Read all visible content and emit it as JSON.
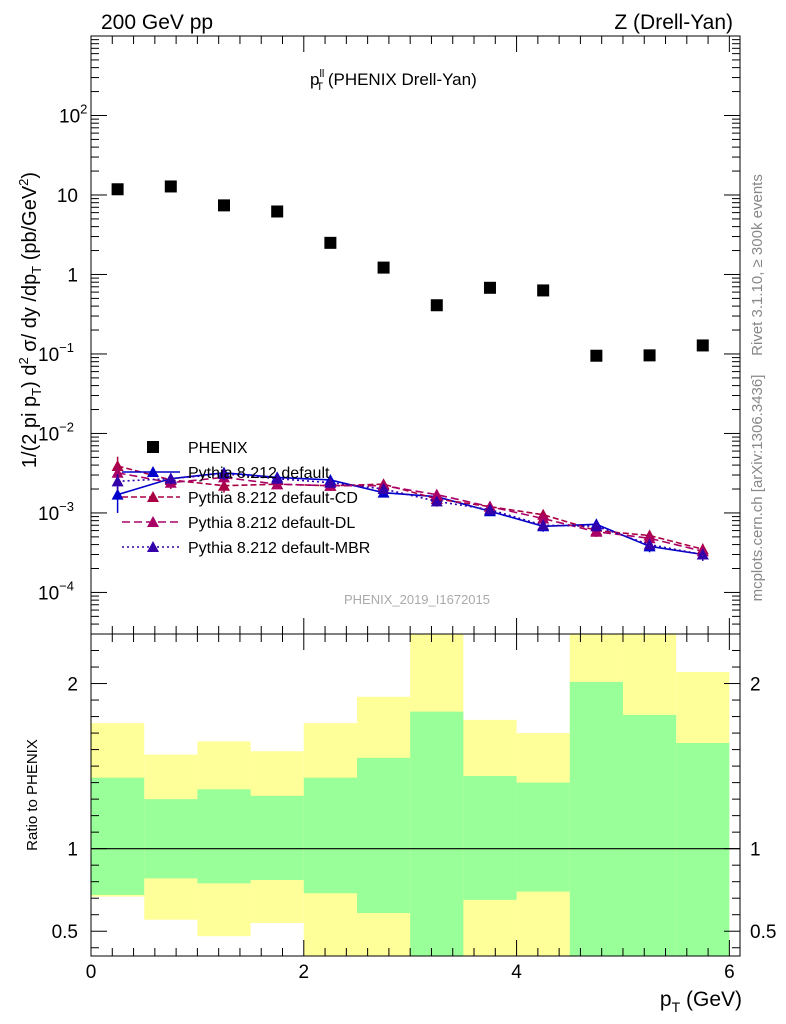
{
  "header": {
    "left": "200 GeV pp",
    "right": "Z (Drell-Yan)"
  },
  "side_labels": {
    "rivet": "Rivet 3.1.10, ≥ 300k events",
    "mcplots": "mcplots.cern.ch [arXiv:1306.3436]"
  },
  "colors": {
    "data": "#000000",
    "default": "#0000cc",
    "cd": "#aa0044",
    "dl": "#aa0066",
    "mbr": "#3300aa",
    "band_outer": "#ffff99",
    "band_inner": "#99ff99"
  },
  "chart_data": [
    {
      "type": "scatter",
      "title_main": "p",
      "title_sup": "ll",
      "title_sub": "T",
      "title_rest": " (PHENIX Drell-Yan)",
      "ylabel": "1/(2 pi p_T) d^2 σ/ dy /dp_T (pb/GeV^2)",
      "ylabel_parts": {
        "a": "1/(2 pi p",
        "a_sub": "T",
        "b": ") d",
        "b_sup": "2",
        "c": " σ/ dy /dp",
        "c_sub": "T",
        "d": " (pb/GeV",
        "d_sup": "2",
        "e": ")"
      },
      "yscale": "log",
      "ylim": [
        3e-05,
        1000
      ],
      "xlim": [
        0,
        6.1
      ],
      "y_ticks": [
        {
          "v": 0.0001,
          "base": "10",
          "exp": "−4"
        },
        {
          "v": 0.001,
          "base": "10",
          "exp": "−3"
        },
        {
          "v": 0.01,
          "base": "10",
          "exp": "−2"
        },
        {
          "v": 0.1,
          "base": "10",
          "exp": "−1"
        },
        {
          "v": 1,
          "base": "1",
          "exp": ""
        },
        {
          "v": 10,
          "base": "10",
          "exp": ""
        },
        {
          "v": 100,
          "base": "10",
          "exp": "2"
        }
      ],
      "watermark": "PHENIX_2019_I1672015",
      "x": [
        0.25,
        0.75,
        1.25,
        1.75,
        2.25,
        2.75,
        3.25,
        3.75,
        4.25,
        4.75,
        5.25,
        5.75
      ],
      "x_edges": [
        0,
        0.5,
        1.0,
        1.5,
        2.0,
        2.5,
        3.0,
        3.5,
        4.0,
        4.5,
        5.0,
        5.5,
        6.0
      ],
      "series": [
        {
          "name": "PHENIX",
          "style": "data",
          "values": [
            11.8,
            12.8,
            7.4,
            6.2,
            2.5,
            1.22,
            0.41,
            0.68,
            0.63,
            0.095,
            0.096,
            0.128
          ]
        },
        {
          "name": "Pythia 8.212 default",
          "style": "default",
          "values": [
            0.0017,
            0.0027,
            0.0032,
            0.0028,
            0.0026,
            0.0018,
            0.0016,
            0.00105,
            0.00068,
            0.00072,
            0.00038,
            0.0003
          ],
          "err": [
            0.0007,
            0.0004,
            0.0005,
            0.0004,
            0.0003,
            0.0002,
            0.0002,
            0.00012,
            0.0001,
            0.0001,
            6e-05,
            5e-05
          ]
        },
        {
          "name": "Pythia 8.212 default-CD",
          "style": "cd",
          "values": [
            0.0039,
            0.0026,
            0.0022,
            0.0023,
            0.0022,
            0.0023,
            0.0015,
            0.0012,
            0.00095,
            0.0006,
            0.00052,
            0.00035
          ],
          "err": [
            0.0012,
            0.0005,
            0.0004,
            0.0003,
            0.0003,
            0.0003,
            0.0002,
            0.00015,
            0.00012,
            8e-05,
            8e-05,
            6e-05
          ]
        },
        {
          "name": "Pythia 8.212 default-DL",
          "style": "dl",
          "values": [
            0.0032,
            0.0024,
            0.0028,
            0.0023,
            0.0022,
            0.0022,
            0.0017,
            0.0012,
            0.00085,
            0.00058,
            0.00048,
            0.00033
          ],
          "err": [
            0.0009,
            0.0004,
            0.0005,
            0.0003,
            0.0003,
            0.0003,
            0.0002,
            0.00015,
            0.00011,
            8e-05,
            7e-05,
            5e-05
          ]
        },
        {
          "name": "Pythia 8.212 default-MBR",
          "style": "mbr",
          "values": [
            0.0025,
            0.0027,
            0.0031,
            0.0027,
            0.0024,
            0.002,
            0.0014,
            0.0011,
            0.0007,
            0.00068,
            0.0004,
            0.0003
          ],
          "err": [
            0.0006,
            0.0004,
            0.0005,
            0.0004,
            0.0003,
            0.0002,
            0.0002,
            0.00012,
            0.0001,
            0.0001,
            6e-05,
            5e-05
          ]
        }
      ]
    },
    {
      "type": "area",
      "ylabel": "Ratio to PHENIX",
      "xlabel_main": "p",
      "xlabel_sub": "T",
      "xlabel_rest": " (GeV)",
      "xlim": [
        0,
        6.1
      ],
      "ylim": [
        0.35,
        2.3
      ],
      "x_ticks": [
        0,
        2,
        4,
        6
      ],
      "y_ticks": [
        0.5,
        1,
        2
      ],
      "bins": [
        0,
        0.5,
        1.0,
        1.5,
        2.0,
        2.5,
        3.0,
        3.5,
        4.0,
        4.5,
        5.0,
        5.5,
        6.0
      ],
      "outer_band_hi": [
        1.76,
        1.57,
        1.65,
        1.59,
        1.76,
        1.92,
        2.35,
        1.78,
        1.7,
        2.35,
        2.35,
        2.07
      ],
      "outer_band_lo": [
        0.71,
        0.57,
        0.47,
        0.55,
        0.35,
        0.35,
        0.35,
        0.35,
        0.35,
        0.35,
        0.35,
        0.42
      ],
      "inner_band_hi": [
        1.43,
        1.3,
        1.36,
        1.32,
        1.43,
        1.55,
        1.83,
        1.44,
        1.4,
        2.01,
        1.81,
        1.64
      ],
      "inner_band_lo": [
        0.72,
        0.82,
        0.79,
        0.81,
        0.73,
        0.61,
        0.35,
        0.69,
        0.74,
        0.35,
        0.35,
        0.35
      ]
    }
  ]
}
